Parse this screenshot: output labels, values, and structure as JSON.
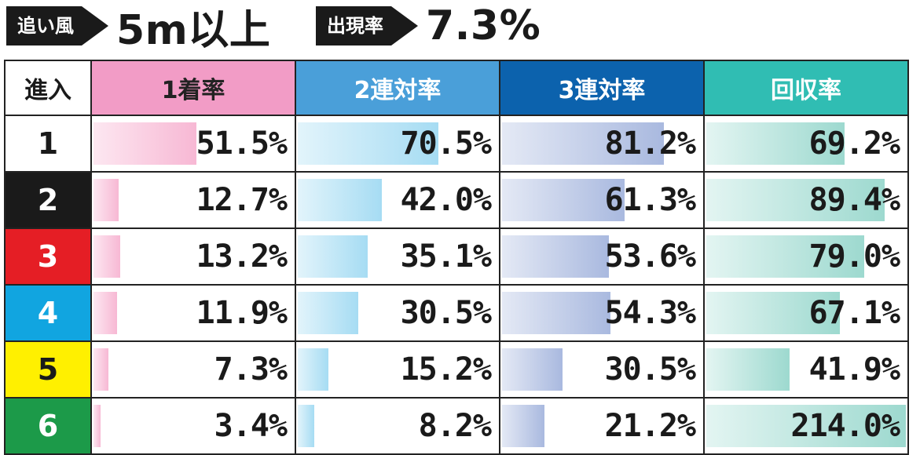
{
  "header": {
    "wind_label": "追い風",
    "wind_value": "5m以上",
    "rate_label": "出現率",
    "rate_value": "7.3%"
  },
  "table": {
    "entry_header": "進入",
    "columns": [
      {
        "label": "1着率",
        "header_color": "#f29cc6",
        "bar_from": "#fde7f1",
        "bar_to": "#f7b8d4"
      },
      {
        "label": "2連対率",
        "header_color": "#4a9fd9",
        "bar_from": "#e2f4fb",
        "bar_to": "#a6dcf3"
      },
      {
        "label": "3連対率",
        "header_color": "#0c62ad",
        "bar_from": "#e4e9f5",
        "bar_to": "#a9b9df"
      },
      {
        "label": "回収率",
        "header_color": "#30bdb3",
        "bar_from": "#e3f5f2",
        "bar_to": "#9dd9cf"
      }
    ],
    "rows": [
      {
        "entry": "1",
        "bg": "#ffffff",
        "fg": "#1a1a1a",
        "values": [
          "51.5%",
          "70.5%",
          "81.2%",
          "69.2%"
        ]
      },
      {
        "entry": "2",
        "bg": "#1a1a1a",
        "fg": "#ffffff",
        "values": [
          "12.7%",
          "42.0%",
          "61.3%",
          "89.4%"
        ]
      },
      {
        "entry": "3",
        "bg": "#e51e25",
        "fg": "#ffffff",
        "values": [
          "13.2%",
          "35.1%",
          "53.6%",
          "79.0%"
        ]
      },
      {
        "entry": "4",
        "bg": "#11a5e0",
        "fg": "#ffffff",
        "values": [
          "11.9%",
          "30.5%",
          "54.3%",
          "67.1%"
        ]
      },
      {
        "entry": "5",
        "bg": "#fff000",
        "fg": "#1a1a1a",
        "values": [
          "7.3%",
          "15.2%",
          "30.5%",
          "41.9%"
        ]
      },
      {
        "entry": "6",
        "bg": "#1c9a49",
        "fg": "#ffffff",
        "values": [
          "3.4%",
          "8.2%",
          "21.2%",
          "214.0%"
        ]
      }
    ]
  },
  "chart_data": {
    "type": "table",
    "title": "",
    "categories": [
      "1",
      "2",
      "3",
      "4",
      "5",
      "6"
    ],
    "series": [
      {
        "name": "1着率",
        "values": [
          51.5,
          12.7,
          13.2,
          11.9,
          7.3,
          3.4
        ]
      },
      {
        "name": "2連対率",
        "values": [
          70.5,
          42.0,
          35.1,
          30.5,
          15.2,
          8.2
        ]
      },
      {
        "name": "3連対率",
        "values": [
          81.2,
          61.3,
          53.6,
          54.3,
          30.5,
          21.2
        ]
      },
      {
        "name": "回収率",
        "values": [
          69.2,
          89.4,
          79.0,
          67.1,
          41.9,
          214.0
        ]
      }
    ]
  }
}
